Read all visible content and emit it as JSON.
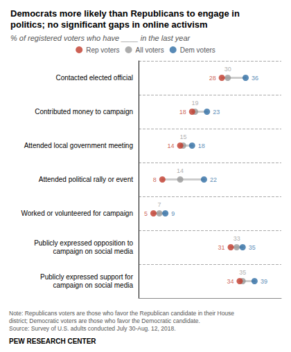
{
  "chart_data": {
    "type": "dumbbell",
    "title": "Democrats more likely than Republicans to engage in\npolitics; no significant gaps in online activism",
    "subtitle": "% of registered voters who have ____ in the last year",
    "categories": [
      "Contacted elected official",
      "Contributed money to campaign",
      "Attended local government meeting",
      "Attended political rally or event",
      "Worked or volunteered for campaign",
      "Publicly expressed opposition to\ncampaign on social media",
      "Publicly expressed support for\ncampaign on social media"
    ],
    "series": [
      {
        "name": "Rep voters",
        "color": "#c0392b",
        "values": [
          28,
          18,
          14,
          8,
          5,
          31,
          34
        ]
      },
      {
        "name": "All voters",
        "color": "#999999",
        "values": [
          30,
          19,
          15,
          14,
          7,
          33,
          35
        ]
      },
      {
        "name": "Dem voters",
        "color": "#2e6da4",
        "values": [
          36,
          23,
          18,
          22,
          9,
          35,
          39
        ]
      }
    ],
    "xlim": [
      0,
      48
    ],
    "tick_labels": "y",
    "data_labels": true,
    "grid": true,
    "legend": "top",
    "note": "Note: Republicans voters are those who favor the Republican candidate in their House\ndistrict; Democratic voters are those who favor the Democratic candidate.\nSource: Survey of U.S. adults conducted July 30-Aug. 12, 2018.",
    "source": "PEW RESEARCH CENTER"
  }
}
